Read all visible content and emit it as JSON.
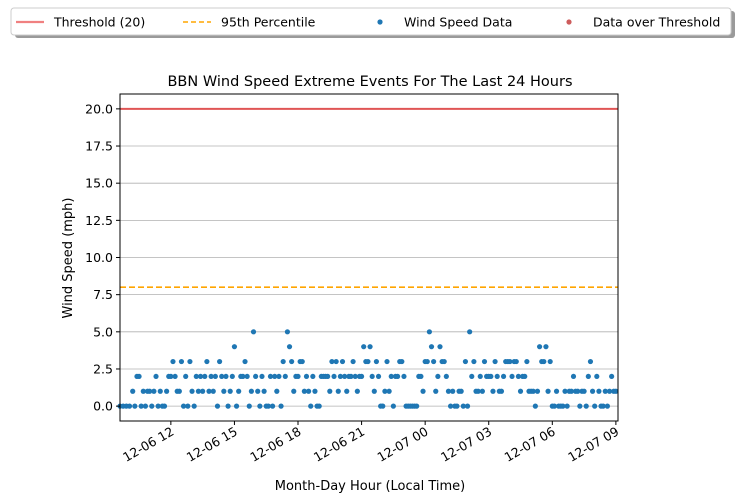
{
  "chart_data": {
    "type": "scatter",
    "title": "BBN Wind Speed Extreme Events For The Last 24 Hours",
    "xlabel": "Month-Day Hour (Local Time)",
    "ylabel": "Wind Speed (mph)",
    "x_range_hours": [
      9.6,
      33.1
    ],
    "ylim": [
      -1,
      21
    ],
    "y_ticks": [
      0.0,
      2.5,
      5.0,
      7.5,
      10.0,
      12.5,
      15.0,
      17.5,
      20.0
    ],
    "y_tick_labels": [
      "0.0",
      "2.5",
      "5.0",
      "7.5",
      "10.0",
      "12.5",
      "15.0",
      "17.5",
      "20.0"
    ],
    "x_ticks_hours": [
      12,
      15,
      18,
      21,
      24,
      27,
      30,
      33
    ],
    "x_tick_labels": [
      "12-06 12",
      "12-06 15",
      "12-06 18",
      "12-06 21",
      "12-07 00",
      "12-07 03",
      "12-07 06",
      "12-07 09"
    ],
    "grid": "y-major",
    "legend_placement": "top (above plot)",
    "legend": [
      {
        "label": "Threshold (20)",
        "kind": "line",
        "color": "#f08080",
        "dash": "solid"
      },
      {
        "label": "95th Percentile",
        "kind": "line",
        "color": "#ffa500",
        "dash": "dashed"
      },
      {
        "label": "Wind Speed Data",
        "kind": "dot",
        "color": "#1f77b4"
      },
      {
        "label": "Data over Threshold",
        "kind": "dot",
        "color": "#cd5c5c"
      }
    ],
    "threshold": {
      "value": 20,
      "color": "#e05555"
    },
    "percentile_95": {
      "value": 8,
      "color": "#ffa500"
    },
    "series": [
      {
        "name": "Wind Speed Data",
        "color": "#1f77b4",
        "points": [
          [
            9.6,
            0
          ],
          [
            9.75,
            0
          ],
          [
            9.9,
            0
          ],
          [
            10.05,
            0
          ],
          [
            10.2,
            1
          ],
          [
            10.3,
            0
          ],
          [
            10.4,
            2
          ],
          [
            10.5,
            2
          ],
          [
            10.6,
            0
          ],
          [
            10.7,
            1
          ],
          [
            10.8,
            0
          ],
          [
            10.9,
            1
          ],
          [
            11.0,
            1
          ],
          [
            11.1,
            0
          ],
          [
            11.2,
            1
          ],
          [
            11.3,
            2
          ],
          [
            11.4,
            0
          ],
          [
            11.5,
            1
          ],
          [
            11.6,
            0
          ],
          [
            11.7,
            0
          ],
          [
            11.8,
            1
          ],
          [
            11.9,
            2
          ],
          [
            12.0,
            2
          ],
          [
            12.1,
            3
          ],
          [
            12.2,
            2
          ],
          [
            12.3,
            1
          ],
          [
            12.4,
            1
          ],
          [
            12.5,
            3
          ],
          [
            12.6,
            0
          ],
          [
            12.7,
            2
          ],
          [
            12.8,
            0
          ],
          [
            12.9,
            3
          ],
          [
            13.0,
            1
          ],
          [
            13.1,
            0
          ],
          [
            13.2,
            2
          ],
          [
            13.3,
            1
          ],
          [
            13.4,
            2
          ],
          [
            13.5,
            1
          ],
          [
            13.6,
            2
          ],
          [
            13.7,
            3
          ],
          [
            13.8,
            1
          ],
          [
            13.9,
            2
          ],
          [
            14.0,
            1
          ],
          [
            14.1,
            2
          ],
          [
            14.2,
            0
          ],
          [
            14.3,
            3
          ],
          [
            14.4,
            2
          ],
          [
            14.5,
            1
          ],
          [
            14.6,
            2
          ],
          [
            14.7,
            0
          ],
          [
            14.8,
            1
          ],
          [
            14.9,
            2
          ],
          [
            15.0,
            4
          ],
          [
            15.1,
            0
          ],
          [
            15.2,
            1
          ],
          [
            15.3,
            2
          ],
          [
            15.4,
            2
          ],
          [
            15.5,
            3
          ],
          [
            15.6,
            2
          ],
          [
            15.7,
            0
          ],
          [
            15.8,
            1
          ],
          [
            15.9,
            5
          ],
          [
            16.0,
            2
          ],
          [
            16.1,
            1
          ],
          [
            16.2,
            0
          ],
          [
            16.3,
            2
          ],
          [
            16.4,
            1
          ],
          [
            16.5,
            0
          ],
          [
            16.6,
            0
          ],
          [
            16.7,
            2
          ],
          [
            16.8,
            0
          ],
          [
            16.9,
            2
          ],
          [
            17.0,
            1
          ],
          [
            17.1,
            2
          ],
          [
            17.2,
            0
          ],
          [
            17.3,
            3
          ],
          [
            17.4,
            2
          ],
          [
            17.5,
            5
          ],
          [
            17.6,
            4
          ],
          [
            17.7,
            3
          ],
          [
            17.8,
            1
          ],
          [
            17.9,
            2
          ],
          [
            18.0,
            2
          ],
          [
            18.1,
            3
          ],
          [
            18.2,
            3
          ],
          [
            18.3,
            1
          ],
          [
            18.4,
            2
          ],
          [
            18.5,
            1
          ],
          [
            18.6,
            0
          ],
          [
            18.7,
            2
          ],
          [
            18.8,
            1
          ],
          [
            18.9,
            0
          ],
          [
            19.0,
            0
          ],
          [
            19.1,
            2
          ],
          [
            19.2,
            2
          ],
          [
            19.3,
            2
          ],
          [
            19.4,
            2
          ],
          [
            19.5,
            1
          ],
          [
            19.6,
            3
          ],
          [
            19.7,
            2
          ],
          [
            19.8,
            3
          ],
          [
            19.9,
            1
          ],
          [
            20.0,
            2
          ],
          [
            20.1,
            3
          ],
          [
            20.2,
            2
          ],
          [
            20.3,
            1
          ],
          [
            20.4,
            2
          ],
          [
            20.5,
            2
          ],
          [
            20.6,
            3
          ],
          [
            20.7,
            2
          ],
          [
            20.8,
            1
          ],
          [
            20.9,
            2
          ],
          [
            21.0,
            2
          ],
          [
            21.1,
            4
          ],
          [
            21.2,
            3
          ],
          [
            21.3,
            3
          ],
          [
            21.4,
            4
          ],
          [
            21.5,
            2
          ],
          [
            21.6,
            1
          ],
          [
            21.7,
            3
          ],
          [
            21.8,
            2
          ],
          [
            21.9,
            0
          ],
          [
            22.0,
            0
          ],
          [
            22.1,
            1
          ],
          [
            22.2,
            3
          ],
          [
            22.3,
            1
          ],
          [
            22.4,
            2
          ],
          [
            22.5,
            0
          ],
          [
            22.6,
            2
          ],
          [
            22.7,
            2
          ],
          [
            22.8,
            3
          ],
          [
            22.9,
            3
          ],
          [
            23.0,
            2
          ],
          [
            23.1,
            0
          ],
          [
            23.2,
            0
          ],
          [
            23.3,
            0
          ],
          [
            23.4,
            0
          ],
          [
            23.5,
            0
          ],
          [
            23.6,
            0
          ],
          [
            23.7,
            2
          ],
          [
            23.8,
            2
          ],
          [
            23.9,
            1
          ],
          [
            24.0,
            3
          ],
          [
            24.1,
            3
          ],
          [
            24.2,
            5
          ],
          [
            24.3,
            4
          ],
          [
            24.4,
            3
          ],
          [
            24.5,
            1
          ],
          [
            24.6,
            2
          ],
          [
            24.7,
            4
          ],
          [
            24.8,
            3
          ],
          [
            24.9,
            3
          ],
          [
            25.0,
            2
          ],
          [
            25.1,
            1
          ],
          [
            25.2,
            0
          ],
          [
            25.3,
            1
          ],
          [
            25.4,
            0
          ],
          [
            25.5,
            0
          ],
          [
            25.6,
            1
          ],
          [
            25.7,
            1
          ],
          [
            25.8,
            0
          ],
          [
            25.9,
            3
          ],
          [
            26.0,
            0
          ],
          [
            26.1,
            5
          ],
          [
            26.2,
            2
          ],
          [
            26.3,
            3
          ],
          [
            26.4,
            1
          ],
          [
            26.5,
            1
          ],
          [
            26.6,
            2
          ],
          [
            26.7,
            1
          ],
          [
            26.8,
            3
          ],
          [
            26.9,
            2
          ],
          [
            27.0,
            2
          ],
          [
            27.1,
            2
          ],
          [
            27.2,
            1
          ],
          [
            27.3,
            3
          ],
          [
            27.4,
            2
          ],
          [
            27.5,
            1
          ],
          [
            27.6,
            1
          ],
          [
            27.7,
            2
          ],
          [
            27.8,
            3
          ],
          [
            27.9,
            3
          ],
          [
            28.0,
            3
          ],
          [
            28.1,
            2
          ],
          [
            28.2,
            3
          ],
          [
            28.3,
            3
          ],
          [
            28.4,
            2
          ],
          [
            28.5,
            1
          ],
          [
            28.6,
            2
          ],
          [
            28.7,
            2
          ],
          [
            28.8,
            3
          ],
          [
            28.9,
            1
          ],
          [
            29.0,
            1
          ],
          [
            29.1,
            1
          ],
          [
            29.2,
            0
          ],
          [
            29.3,
            1
          ],
          [
            29.4,
            4
          ],
          [
            29.5,
            3
          ],
          [
            29.6,
            3
          ],
          [
            29.7,
            4
          ],
          [
            29.8,
            1
          ],
          [
            29.9,
            3
          ],
          [
            30.0,
            0
          ],
          [
            30.1,
            0
          ],
          [
            30.2,
            1
          ],
          [
            30.3,
            0
          ],
          [
            30.4,
            0
          ],
          [
            30.5,
            0
          ],
          [
            30.6,
            1
          ],
          [
            30.7,
            0
          ],
          [
            30.8,
            1
          ],
          [
            30.9,
            1
          ],
          [
            31.0,
            2
          ],
          [
            31.1,
            1
          ],
          [
            31.2,
            1
          ],
          [
            31.3,
            0
          ],
          [
            31.4,
            1
          ],
          [
            31.5,
            1
          ],
          [
            31.6,
            0
          ],
          [
            31.7,
            2
          ],
          [
            31.8,
            3
          ],
          [
            31.9,
            1
          ],
          [
            32.0,
            0
          ],
          [
            32.1,
            2
          ],
          [
            32.2,
            1
          ],
          [
            32.3,
            0
          ],
          [
            32.4,
            0
          ],
          [
            32.5,
            1
          ],
          [
            32.6,
            0
          ],
          [
            32.7,
            1
          ],
          [
            32.8,
            2
          ],
          [
            32.9,
            1
          ],
          [
            33.0,
            1
          ]
        ]
      },
      {
        "name": "Data over Threshold",
        "color": "#cd5c5c",
        "points": []
      }
    ]
  }
}
